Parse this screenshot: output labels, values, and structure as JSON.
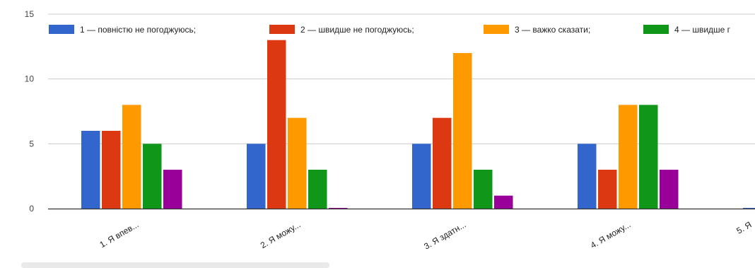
{
  "chart_data": {
    "type": "bar",
    "categories": [
      "1. Я впев...",
      "2. Я можу...",
      "3. Я здатн...",
      "4. Я можу...",
      "5. Я"
    ],
    "series": [
      {
        "name": "1 — повністю не погоджуюсь;",
        "color": "#3366cc",
        "values": [
          6,
          5,
          5,
          5,
          0
        ]
      },
      {
        "name": "2 — швидше не погоджуюсь;",
        "color": "#dc3912",
        "values": [
          6,
          13,
          7,
          3,
          null
        ]
      },
      {
        "name": "3 — важко сказати;",
        "color": "#ff9900",
        "values": [
          8,
          7,
          12,
          8,
          null
        ]
      },
      {
        "name": "4 — швидше г",
        "color": "#109618",
        "values": [
          5,
          3,
          3,
          8,
          null
        ]
      },
      {
        "name": "",
        "color": "#990099",
        "values": [
          3,
          0,
          1,
          3,
          null
        ]
      }
    ],
    "yticks": [
      "0",
      "5",
      "10",
      "15"
    ],
    "ylim": [
      0,
      15
    ],
    "grid": true,
    "legend_position": "top"
  }
}
